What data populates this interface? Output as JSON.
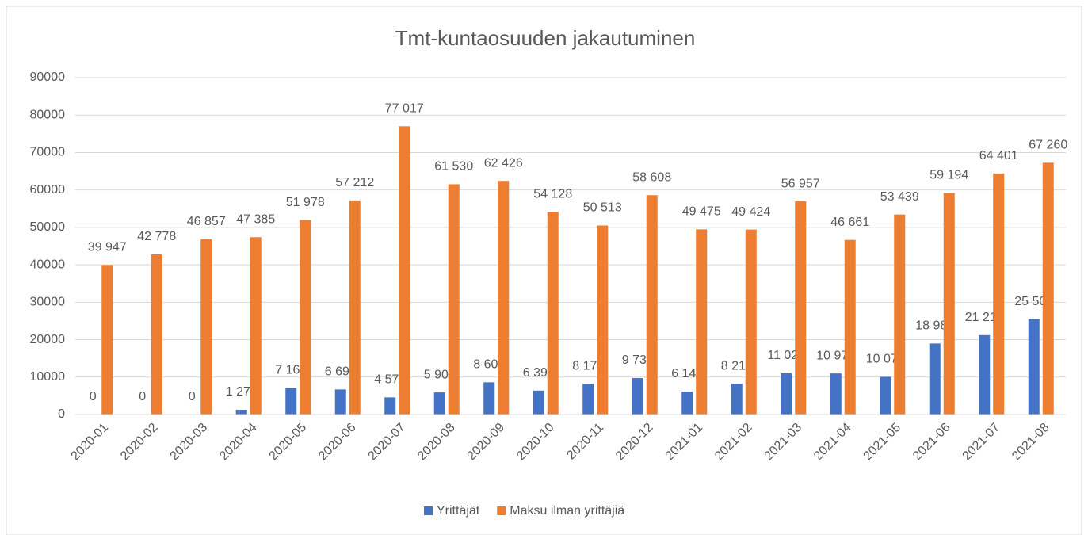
{
  "chart_data": {
    "type": "bar",
    "title": "Tmt-kuntaosuuden jakautuminen",
    "categories": [
      "2020-01",
      "2020-02",
      "2020-03",
      "2020-04",
      "2020-05",
      "2020-06",
      "2020-07",
      "2020-08",
      "2020-09",
      "2020-10",
      "2020-11",
      "2020-12",
      "2021-01",
      "2021-02",
      "2021-03",
      "2021-04",
      "2021-05",
      "2021-06",
      "2021-07",
      "2021-08"
    ],
    "series": [
      {
        "name": "Yrittäjät",
        "color": "#4472c4",
        "values": [
          0,
          0,
          0,
          1277,
          7167,
          6695,
          4575,
          5904,
          8608,
          6395,
          8177,
          9736,
          6147,
          8219,
          11027,
          10979,
          10071,
          18981,
          21215,
          25508
        ],
        "value_labels": [
          "0",
          "0",
          "0",
          "1 277",
          "7 167",
          "6 695",
          "4 575",
          "5 904",
          "8 608",
          "6 395",
          "8 177",
          "9 736",
          "6 147",
          "8 219",
          "11 027",
          "10 979",
          "10 071",
          "18 981",
          "21 215",
          "25 508"
        ]
      },
      {
        "name": "Maksu ilman yrittäjiä",
        "color": "#ed7d31",
        "values": [
          39947,
          42778,
          46857,
          47385,
          51978,
          57212,
          77017,
          61530,
          62426,
          54128,
          50513,
          58608,
          49475,
          49424,
          56957,
          46661,
          53439,
          59194,
          64401,
          67260
        ],
        "value_labels": [
          "39 947",
          "42 778",
          "46 857",
          "47 385",
          "51 978",
          "57 212",
          "77 017",
          "61 530",
          "62 426",
          "54 128",
          "50 513",
          "58 608",
          "49 475",
          "49 424",
          "56 957",
          "46 661",
          "53 439",
          "59 194",
          "64 401",
          "67 260"
        ]
      }
    ],
    "ylim": [
      0,
      90000
    ],
    "yticks": [
      0,
      10000,
      20000,
      30000,
      40000,
      50000,
      60000,
      70000,
      80000,
      90000
    ],
    "grid": true,
    "legend": "bottom"
  }
}
